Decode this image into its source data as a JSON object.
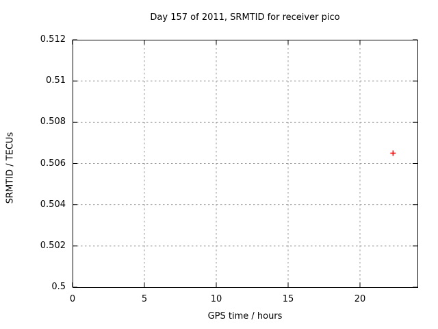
{
  "chart_data": {
    "type": "scatter",
    "title": "Day 157 of 2011, SRMTID for receiver pico",
    "xlabel": "GPS time / hours",
    "ylabel": "SRMTID / TECUs",
    "xlim": [
      0,
      24
    ],
    "ylim": [
      0.5,
      0.512
    ],
    "xticks": {
      "values": [
        0,
        5,
        10,
        15,
        20
      ],
      "labels": [
        "0",
        "5",
        "10",
        "15",
        "20"
      ]
    },
    "yticks": {
      "values": [
        0.5,
        0.502,
        0.504,
        0.506,
        0.508,
        0.51,
        0.512
      ],
      "labels": [
        "0.5",
        "0.502",
        "0.504",
        "0.506",
        "0.508",
        "0.51",
        "0.512"
      ]
    },
    "grid": true,
    "grid_style": "dashed",
    "legend": "none",
    "series": [
      {
        "name": "SRMTID",
        "marker": "plus",
        "color": "#ff0000",
        "points": [
          {
            "x": 22.3,
            "y": 0.5065
          }
        ]
      }
    ],
    "colors": {
      "axis": "#000000",
      "grid": "#9a9a9a",
      "text": "#000000",
      "background": "#ffffff"
    }
  }
}
